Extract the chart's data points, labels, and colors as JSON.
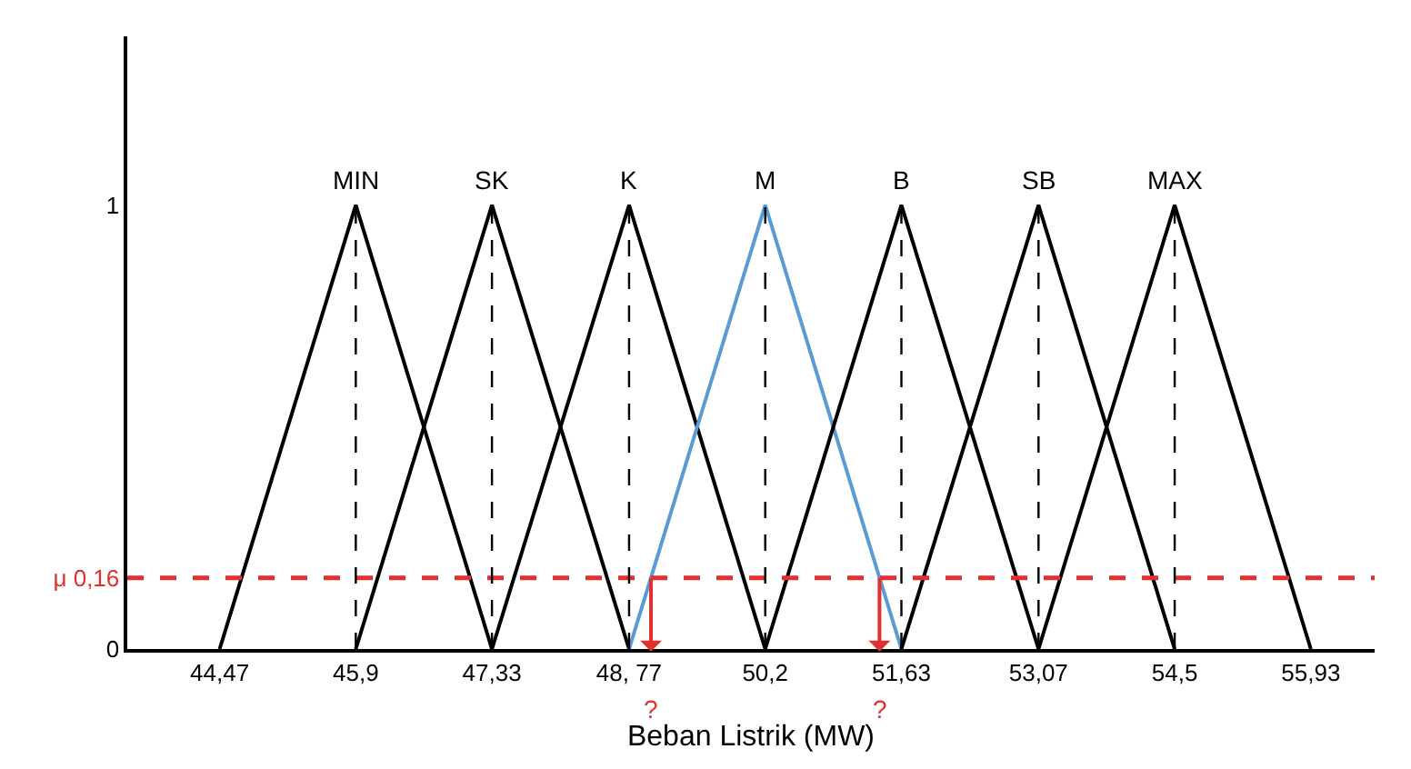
{
  "chart_data": {
    "type": "line",
    "xlabel": "Beban Listrik (MW)",
    "xlim": [
      43.5,
      56.6
    ],
    "ylim": [
      0,
      1.38
    ],
    "xticks": [
      {
        "value": 44.47,
        "label": "44,47"
      },
      {
        "value": 45.9,
        "label": "45,9"
      },
      {
        "value": 47.33,
        "label": "47,33"
      },
      {
        "value": 48.77,
        "label": "48, 77"
      },
      {
        "value": 50.2,
        "label": "50,2"
      },
      {
        "value": 51.63,
        "label": "51,63"
      },
      {
        "value": 53.07,
        "label": "53,07"
      },
      {
        "value": 54.5,
        "label": "54,5"
      },
      {
        "value": 55.93,
        "label": "55,93"
      }
    ],
    "yticks": [
      0,
      1
    ],
    "legend": false,
    "marker": "none",
    "series": [
      {
        "name": "MIN",
        "color": "#000000",
        "x": [
          44.47,
          45.9,
          47.33
        ],
        "values": [
          0,
          1,
          0
        ],
        "line_style": "solid"
      },
      {
        "name": "SK",
        "color": "#000000",
        "x": [
          45.9,
          47.33,
          48.77
        ],
        "values": [
          0,
          1,
          0
        ],
        "line_style": "solid"
      },
      {
        "name": "K",
        "color": "#000000",
        "x": [
          47.33,
          48.77,
          50.2
        ],
        "values": [
          0,
          1,
          0
        ],
        "line_style": "solid"
      },
      {
        "name": "M",
        "color": "#5b9bd5",
        "x": [
          48.77,
          50.2,
          51.63
        ],
        "values": [
          0,
          1,
          0
        ],
        "line_style": "solid"
      },
      {
        "name": "B",
        "color": "#000000",
        "x": [
          50.2,
          51.63,
          53.07
        ],
        "values": [
          0,
          1,
          0
        ],
        "line_style": "solid"
      },
      {
        "name": "SB",
        "color": "#000000",
        "x": [
          51.63,
          53.07,
          54.5
        ],
        "values": [
          0,
          1,
          0
        ],
        "line_style": "solid"
      },
      {
        "name": "MAX",
        "color": "#000000",
        "x": [
          53.07,
          54.5,
          55.93
        ],
        "values": [
          0,
          1,
          0
        ],
        "line_style": "solid"
      }
    ],
    "ref_lines": [
      {
        "axis": "y",
        "value": 0.16,
        "label": "μ 0,16",
        "color": "#e03030",
        "line_style": "dashed"
      },
      {
        "axis": "x",
        "value": 45.9,
        "color": "#000000",
        "line_style": "dashed"
      },
      {
        "axis": "x",
        "value": 47.33,
        "color": "#000000",
        "line_style": "dashed"
      },
      {
        "axis": "x",
        "value": 48.77,
        "color": "#000000",
        "line_style": "dashed"
      },
      {
        "axis": "x",
        "value": 50.2,
        "color": "#000000",
        "line_style": "dashed"
      },
      {
        "axis": "x",
        "value": 51.63,
        "color": "#000000",
        "line_style": "dashed"
      },
      {
        "axis": "x",
        "value": 53.07,
        "color": "#000000",
        "line_style": "dashed"
      },
      {
        "axis": "x",
        "value": 54.5,
        "color": "#000000",
        "line_style": "dashed"
      }
    ],
    "annotations": [
      {
        "text": "?",
        "x": 49.0,
        "y": 0.16
      },
      {
        "text": "?",
        "x": 51.4,
        "y": 0.16
      }
    ]
  }
}
